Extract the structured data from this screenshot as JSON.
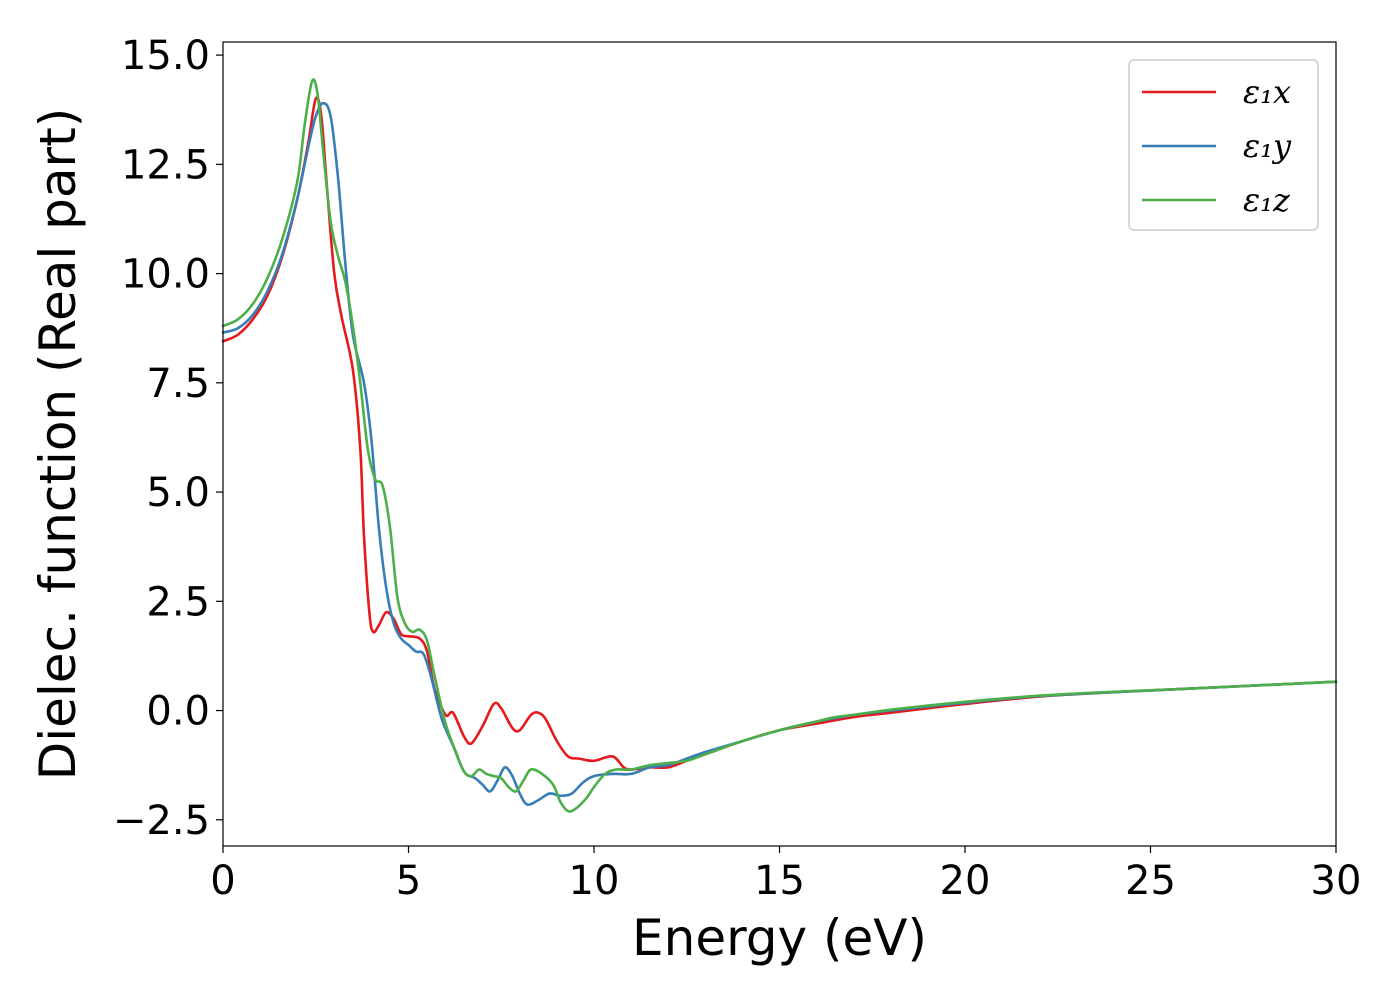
{
  "chart_data": {
    "type": "line",
    "title": "",
    "xlabel": "Energy (eV)",
    "ylabel": "Dielec. function (Real part)",
    "xlim": [
      0,
      30
    ],
    "ylim": [
      -3.1,
      15.3
    ],
    "xticks": [
      0,
      5,
      10,
      15,
      20,
      25,
      30
    ],
    "xtick_labels": [
      "0",
      "5",
      "10",
      "15",
      "20",
      "25",
      "30"
    ],
    "yticks": [
      -2.5,
      0,
      2.5,
      5,
      7.5,
      10,
      12.5,
      15
    ],
    "ytick_labels": [
      "−2.5",
      "0.0",
      "2.5",
      "5.0",
      "7.5",
      "10.0",
      "12.5",
      "15.0"
    ],
    "grid": false,
    "legend_position": "top-right",
    "series": [
      {
        "name": "ε₁x",
        "color": "#e41a1c",
        "points": [
          [
            0,
            8.45
          ],
          [
            0.4,
            8.6
          ],
          [
            0.8,
            8.95
          ],
          [
            1.2,
            9.5
          ],
          [
            1.6,
            10.4
          ],
          [
            2.0,
            11.7
          ],
          [
            2.3,
            13.0
          ],
          [
            2.5,
            14.0
          ],
          [
            2.65,
            13.6
          ],
          [
            2.8,
            12.0
          ],
          [
            3.0,
            10.0
          ],
          [
            3.2,
            9.0
          ],
          [
            3.5,
            7.8
          ],
          [
            3.7,
            6.0
          ],
          [
            3.8,
            4.0
          ],
          [
            3.95,
            2.2
          ],
          [
            4.05,
            1.8
          ],
          [
            4.2,
            1.95
          ],
          [
            4.4,
            2.25
          ],
          [
            4.6,
            2.1
          ],
          [
            4.8,
            1.75
          ],
          [
            5.0,
            1.7
          ],
          [
            5.3,
            1.65
          ],
          [
            5.5,
            1.35
          ],
          [
            5.7,
            0.5
          ],
          [
            6.0,
            -0.1
          ],
          [
            6.2,
            -0.05
          ],
          [
            6.5,
            -0.6
          ],
          [
            6.7,
            -0.75
          ],
          [
            7.0,
            -0.35
          ],
          [
            7.3,
            0.15
          ],
          [
            7.5,
            0.05
          ],
          [
            7.8,
            -0.4
          ],
          [
            8.0,
            -0.45
          ],
          [
            8.3,
            -0.1
          ],
          [
            8.5,
            -0.05
          ],
          [
            8.7,
            -0.2
          ],
          [
            9.0,
            -0.7
          ],
          [
            9.3,
            -1.05
          ],
          [
            9.6,
            -1.1
          ],
          [
            10.0,
            -1.15
          ],
          [
            10.5,
            -1.05
          ],
          [
            10.8,
            -1.3
          ],
          [
            11.0,
            -1.35
          ],
          [
            11.5,
            -1.3
          ],
          [
            12.0,
            -1.3
          ],
          [
            12.5,
            -1.15
          ],
          [
            13.0,
            -1.0
          ],
          [
            14.0,
            -0.7
          ],
          [
            15.0,
            -0.45
          ],
          [
            16.0,
            -0.3
          ],
          [
            17.0,
            -0.15
          ],
          [
            18.0,
            -0.05
          ],
          [
            20.0,
            0.15
          ],
          [
            22.0,
            0.32
          ],
          [
            24.0,
            0.42
          ],
          [
            26.0,
            0.5
          ],
          [
            28.0,
            0.58
          ],
          [
            30.0,
            0.66
          ]
        ]
      },
      {
        "name": "ε₁y",
        "color": "#377eb8",
        "points": [
          [
            0,
            8.65
          ],
          [
            0.4,
            8.75
          ],
          [
            0.8,
            9.05
          ],
          [
            1.2,
            9.6
          ],
          [
            1.6,
            10.45
          ],
          [
            2.0,
            11.7
          ],
          [
            2.3,
            12.9
          ],
          [
            2.5,
            13.6
          ],
          [
            2.7,
            13.9
          ],
          [
            2.9,
            13.6
          ],
          [
            3.1,
            12.2
          ],
          [
            3.3,
            10.2
          ],
          [
            3.5,
            8.6
          ],
          [
            3.8,
            7.5
          ],
          [
            4.0,
            6.2
          ],
          [
            4.2,
            4.2
          ],
          [
            4.4,
            2.8
          ],
          [
            4.6,
            2.0
          ],
          [
            4.8,
            1.65
          ],
          [
            5.0,
            1.5
          ],
          [
            5.2,
            1.35
          ],
          [
            5.4,
            1.3
          ],
          [
            5.6,
            0.8
          ],
          [
            5.9,
            -0.2
          ],
          [
            6.2,
            -0.8
          ],
          [
            6.5,
            -1.4
          ],
          [
            6.8,
            -1.55
          ],
          [
            7.0,
            -1.7
          ],
          [
            7.2,
            -1.85
          ],
          [
            7.4,
            -1.6
          ],
          [
            7.6,
            -1.3
          ],
          [
            7.8,
            -1.5
          ],
          [
            8.0,
            -1.9
          ],
          [
            8.2,
            -2.15
          ],
          [
            8.5,
            -2.05
          ],
          [
            8.8,
            -1.9
          ],
          [
            9.1,
            -1.95
          ],
          [
            9.4,
            -1.9
          ],
          [
            9.7,
            -1.65
          ],
          [
            10.0,
            -1.5
          ],
          [
            10.5,
            -1.45
          ],
          [
            11.0,
            -1.45
          ],
          [
            11.5,
            -1.3
          ],
          [
            12.0,
            -1.25
          ],
          [
            12.5,
            -1.1
          ],
          [
            13.0,
            -0.95
          ],
          [
            14.0,
            -0.7
          ],
          [
            15.0,
            -0.45
          ],
          [
            16.0,
            -0.25
          ],
          [
            17.0,
            -0.1
          ],
          [
            18.0,
            0.0
          ],
          [
            20.0,
            0.18
          ],
          [
            22.0,
            0.33
          ],
          [
            24.0,
            0.42
          ],
          [
            26.0,
            0.5
          ],
          [
            28.0,
            0.58
          ],
          [
            30.0,
            0.66
          ]
        ]
      },
      {
        "name": "ε₁z",
        "color": "#4daf4a",
        "points": [
          [
            0,
            8.8
          ],
          [
            0.4,
            8.95
          ],
          [
            0.8,
            9.3
          ],
          [
            1.2,
            9.9
          ],
          [
            1.6,
            10.8
          ],
          [
            2.0,
            12.1
          ],
          [
            2.2,
            13.4
          ],
          [
            2.4,
            14.4
          ],
          [
            2.55,
            14.1
          ],
          [
            2.7,
            12.8
          ],
          [
            2.9,
            11.2
          ],
          [
            3.1,
            10.4
          ],
          [
            3.3,
            9.8
          ],
          [
            3.5,
            8.8
          ],
          [
            3.7,
            7.5
          ],
          [
            3.9,
            6.0
          ],
          [
            4.1,
            5.3
          ],
          [
            4.3,
            5.15
          ],
          [
            4.5,
            4.2
          ],
          [
            4.7,
            2.6
          ],
          [
            4.9,
            2.0
          ],
          [
            5.1,
            1.8
          ],
          [
            5.3,
            1.85
          ],
          [
            5.5,
            1.6
          ],
          [
            5.7,
            0.8
          ],
          [
            6.0,
            -0.3
          ],
          [
            6.3,
            -1.0
          ],
          [
            6.5,
            -1.4
          ],
          [
            6.7,
            -1.5
          ],
          [
            6.9,
            -1.35
          ],
          [
            7.1,
            -1.45
          ],
          [
            7.3,
            -1.5
          ],
          [
            7.5,
            -1.55
          ],
          [
            7.7,
            -1.75
          ],
          [
            7.9,
            -1.85
          ],
          [
            8.1,
            -1.6
          ],
          [
            8.3,
            -1.35
          ],
          [
            8.6,
            -1.45
          ],
          [
            8.9,
            -1.7
          ],
          [
            9.1,
            -2.1
          ],
          [
            9.3,
            -2.3
          ],
          [
            9.5,
            -2.25
          ],
          [
            9.8,
            -2.0
          ],
          [
            10.0,
            -1.75
          ],
          [
            10.3,
            -1.45
          ],
          [
            10.6,
            -1.35
          ],
          [
            11.0,
            -1.35
          ],
          [
            11.5,
            -1.25
          ],
          [
            12.0,
            -1.2
          ],
          [
            12.5,
            -1.15
          ],
          [
            13.0,
            -1.0
          ],
          [
            14.0,
            -0.7
          ],
          [
            15.0,
            -0.45
          ],
          [
            16.0,
            -0.25
          ],
          [
            16.5,
            -0.15
          ],
          [
            17.0,
            -0.1
          ],
          [
            18.0,
            0.02
          ],
          [
            20.0,
            0.2
          ],
          [
            22.0,
            0.34
          ],
          [
            24.0,
            0.43
          ],
          [
            26.0,
            0.5
          ],
          [
            28.0,
            0.58
          ],
          [
            30.0,
            0.66
          ]
        ]
      }
    ]
  }
}
